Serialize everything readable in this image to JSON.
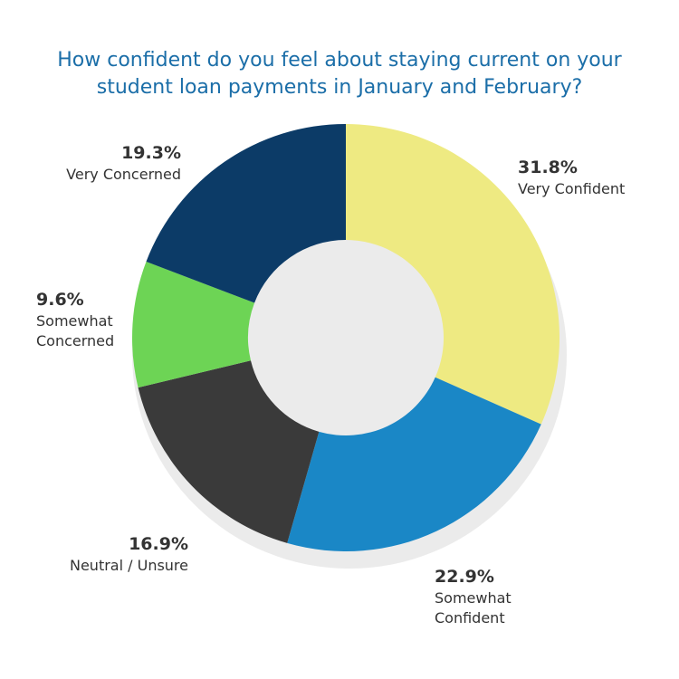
{
  "chart_data": {
    "type": "donut",
    "title": "How confident do you feel about staying current on your student loan payments in January and February?",
    "categories": [
      "Very Confident",
      "Somewhat Confident",
      "Neutral / Unsure",
      "Somewhat Concerned",
      "Very Concerned"
    ],
    "values": [
      31.8,
      22.9,
      16.9,
      9.6,
      19.3
    ],
    "value_labels": [
      "31.8%",
      "22.9%",
      "16.9%",
      "9.6%",
      "19.3%"
    ],
    "colors": [
      "#eeea82",
      "#1a87c6",
      "#3a3a3a",
      "#6dd455",
      "#0c3b67"
    ]
  }
}
